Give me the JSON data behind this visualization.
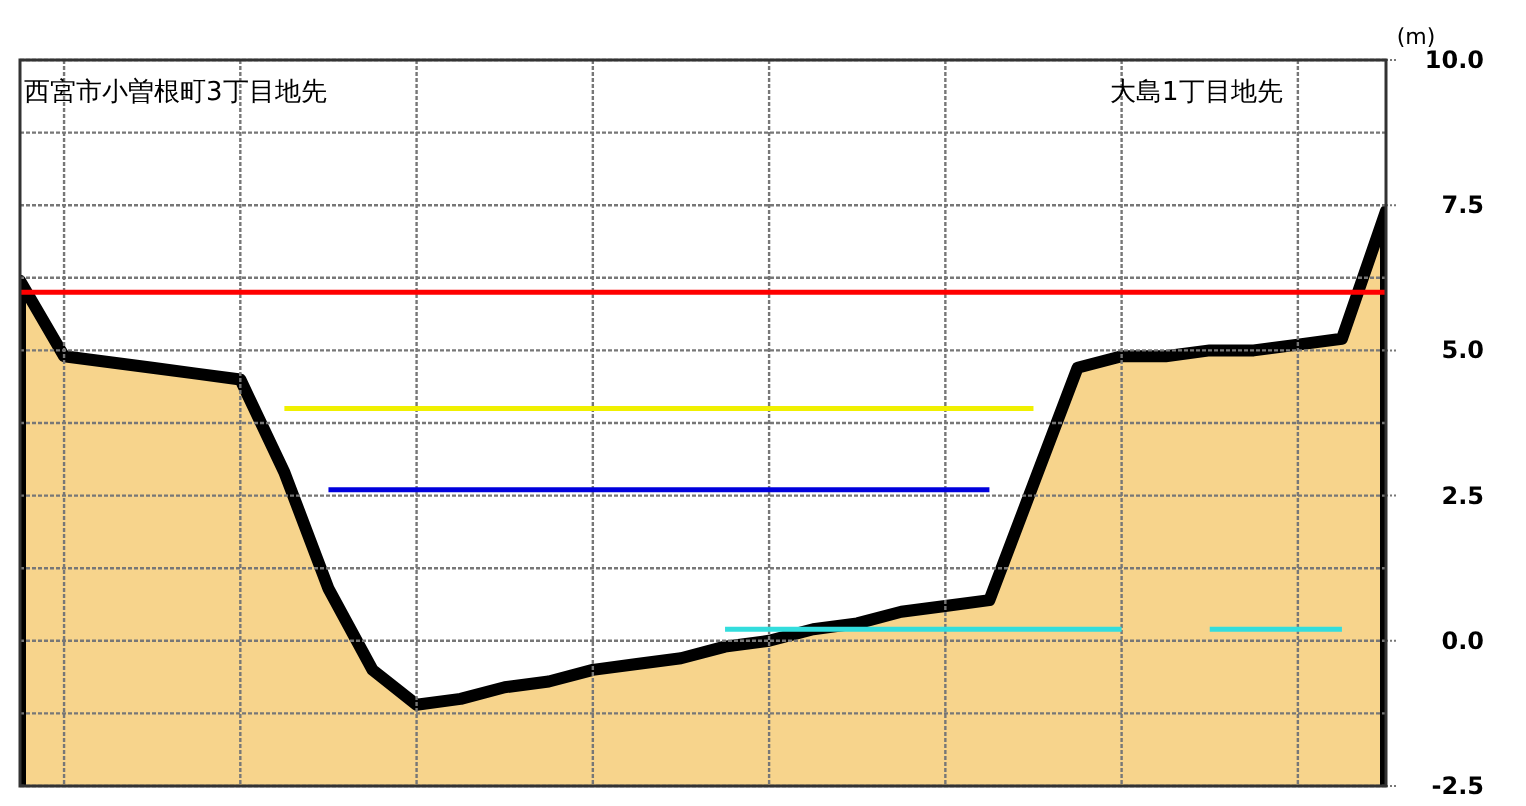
{
  "chart_data": {
    "type": "line",
    "ylabel": "(m)",
    "annotations": [
      "西宮市小曽根町3丁目地先",
      "大島1丁目地先"
    ],
    "categories": [
      null,
      null,
      null,
      null,
      null,
      null,
      null,
      null,
      null,
      null,
      null,
      null,
      null,
      null,
      null,
      null,
      null,
      null,
      null,
      null,
      null,
      null,
      null,
      null,
      null,
      null,
      null,
      null,
      null,
      null,
      null,
      null
    ],
    "ylim": [
      -2.5,
      10
    ],
    "yticks": [
      {
        "value": -2.5,
        "label": "-2.5"
      },
      {
        "value": -1.25,
        "label": null
      },
      {
        "value": 0,
        "label": "0.0"
      },
      {
        "value": 1.25,
        "label": null
      },
      {
        "value": 2.5,
        "label": "2.5"
      },
      {
        "value": 3.75,
        "label": null
      },
      {
        "value": 5,
        "label": "5.0"
      },
      {
        "value": 6.25,
        "label": null
      },
      {
        "value": 7.5,
        "label": "7.5"
      },
      {
        "value": 8.75,
        "label": null
      },
      {
        "value": 10,
        "label": "10.0"
      }
    ],
    "tick_labels": "y",
    "grid": true,
    "series": [
      {
        "type": "area",
        "color": "#f7d48c",
        "values": [
          6.2,
          4.9,
          4.8,
          4.7,
          4.6,
          4.5,
          2.9,
          0.9,
          -0.5,
          -1.1,
          -1.0,
          -0.8,
          -0.7,
          -0.5,
          -0.4,
          -0.3,
          -0.1,
          0.0,
          0.2,
          0.3,
          0.5,
          0.6,
          0.7,
          2.7,
          4.7,
          4.9,
          4.9,
          5.0,
          5.0,
          5.1,
          5.2,
          7.4
        ]
      },
      {
        "color": "#ff0000",
        "values": [
          6.0,
          6.0,
          6.0,
          6.0,
          6.0,
          6.0,
          6.0,
          6.0,
          6.0,
          6.0,
          6.0,
          6.0,
          6.0,
          6.0,
          6.0,
          6.0,
          6.0,
          6.0,
          6.0,
          6.0,
          6.0,
          6.0,
          6.0,
          6.0,
          6.0,
          6.0,
          6.0,
          6.0,
          6.0,
          6.0,
          6.0,
          6.0
        ]
      },
      {
        "color": "#f0f000",
        "values": [
          null,
          null,
          null,
          null,
          null,
          null,
          4.0,
          4.0,
          4.0,
          4.0,
          4.0,
          4.0,
          4.0,
          4.0,
          4.0,
          4.0,
          4.0,
          4.0,
          4.0,
          4.0,
          4.0,
          4.0,
          4.0,
          4.0,
          null,
          null,
          null,
          null,
          null,
          null,
          null,
          null
        ]
      },
      {
        "color": "#0000dd",
        "values": [
          null,
          null,
          null,
          null,
          null,
          null,
          null,
          2.6,
          2.6,
          2.6,
          2.6,
          2.6,
          2.6,
          2.6,
          2.6,
          2.6,
          2.6,
          2.6,
          2.6,
          2.6,
          2.6,
          2.6,
          2.6,
          null,
          null,
          null,
          null,
          null,
          null,
          null,
          null,
          null
        ]
      },
      {
        "color": "#33dddd",
        "values": [
          null,
          null,
          null,
          null,
          null,
          null,
          null,
          null,
          null,
          null,
          null,
          null,
          null,
          null,
          null,
          null,
          0.2,
          0.2,
          0.2,
          0.2,
          0.2,
          0.2,
          0.2,
          0.2,
          0.2,
          0.2,
          null,
          0.2,
          0.2,
          0.2,
          0.2,
          null
        ]
      }
    ]
  }
}
